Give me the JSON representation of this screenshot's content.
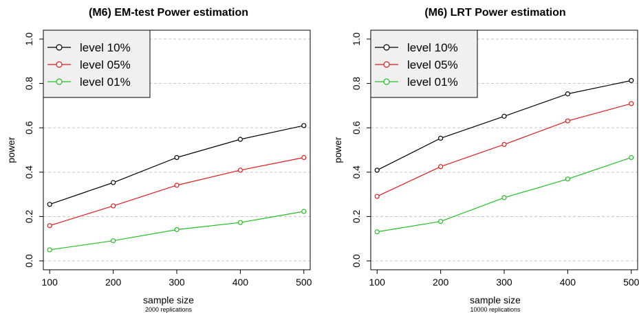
{
  "chart_data": [
    {
      "type": "line",
      "title": "(M6) EM-test Power estimation",
      "xlabel": "sample size",
      "caption": "2000 replications",
      "ylabel": "power",
      "x": [
        100,
        200,
        300,
        400,
        500
      ],
      "x_ticks": [
        "100",
        "200",
        "300",
        "400",
        "500"
      ],
      "y_ticks": [
        "0.0",
        "0.2",
        "0.4",
        "0.6",
        "0.8",
        "1.0"
      ],
      "xlim": [
        90,
        510
      ],
      "ylim": [
        -0.04,
        1.04
      ],
      "grid": "horizontal dashed",
      "legend": "top-left",
      "series": [
        {
          "name": "level 10%",
          "color": "#000000",
          "values": [
            0.255,
            0.353,
            0.466,
            0.548,
            0.61
          ]
        },
        {
          "name": "level 05%",
          "color": "#e41a1c",
          "values": [
            0.159,
            0.248,
            0.341,
            0.409,
            0.466
          ]
        },
        {
          "name": "level 01%",
          "color": "#1fbf1f",
          "values": [
            0.05,
            0.091,
            0.141,
            0.173,
            0.223
          ]
        }
      ]
    },
    {
      "type": "line",
      "title": "(M6) LRT Power estimation",
      "xlabel": "sample size",
      "caption": "10000 replications",
      "ylabel": "power",
      "x": [
        100,
        200,
        300,
        400,
        500
      ],
      "x_ticks": [
        "100",
        "200",
        "300",
        "400",
        "500"
      ],
      "y_ticks": [
        "0.0",
        "0.2",
        "0.4",
        "0.6",
        "0.8",
        "1.0"
      ],
      "xlim": [
        90,
        510
      ],
      "ylim": [
        -0.04,
        1.04
      ],
      "grid": "horizontal dashed",
      "legend": "top-left",
      "series": [
        {
          "name": "level 10%",
          "color": "#000000",
          "values": [
            0.409,
            0.553,
            0.652,
            0.753,
            0.813
          ]
        },
        {
          "name": "level 05%",
          "color": "#e41a1c",
          "values": [
            0.291,
            0.425,
            0.525,
            0.631,
            0.709
          ]
        },
        {
          "name": "level 01%",
          "color": "#1fbf1f",
          "values": [
            0.131,
            0.178,
            0.285,
            0.369,
            0.466
          ]
        }
      ]
    }
  ]
}
